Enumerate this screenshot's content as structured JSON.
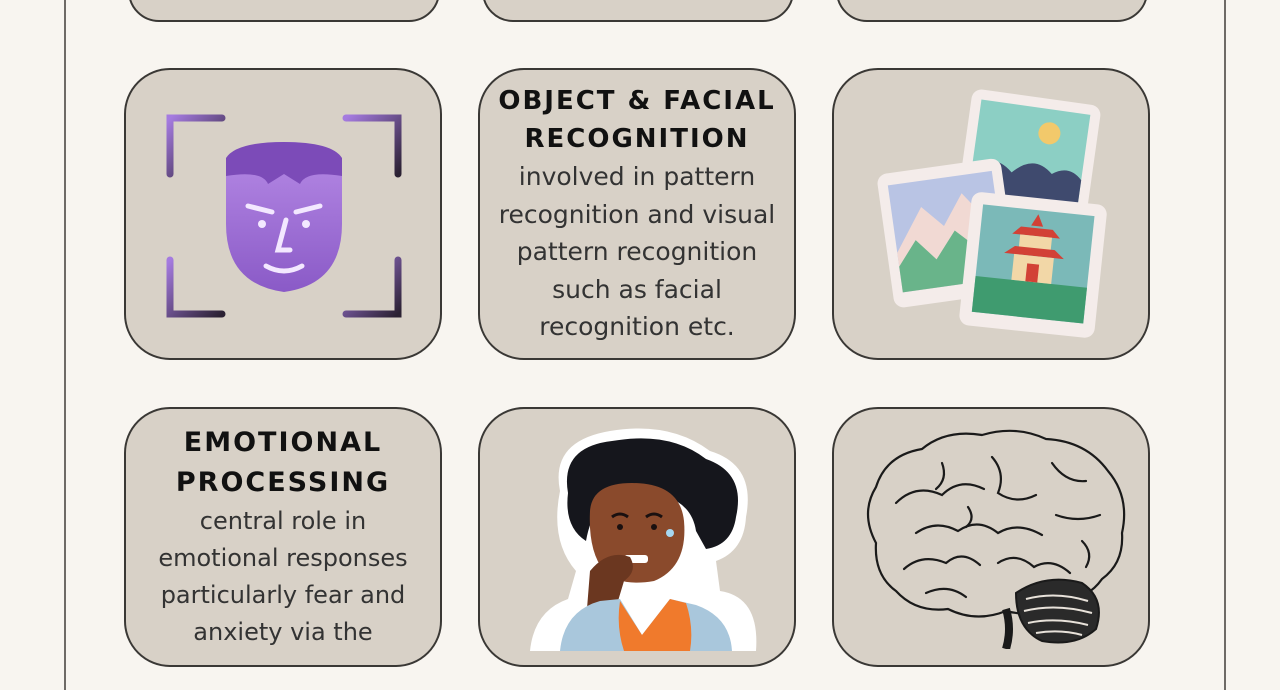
{
  "cards": {
    "object_facial": {
      "heading_line1": "OBJECT & FACIAL",
      "heading_line2": "RECOGNITION",
      "body_lines": [
        "involved in pattern",
        "recognition and visual",
        "pattern recognition",
        "such as facial",
        "recognition etc."
      ]
    },
    "emotional": {
      "heading_line1": "EMOTIONAL",
      "heading_line2": "PROCESSING",
      "body_lines": [
        "central role in",
        "emotional responses",
        "particularly fear and",
        "anxiety via the"
      ]
    }
  },
  "icons": {
    "face_scan": "face-scan-icon",
    "photos": "photos-icon",
    "anxious_woman": "anxious-woman-illustration",
    "brain": "brain-icon"
  },
  "colors": {
    "card_bg": "#d8d1c7",
    "page_bg": "#f8f5f0",
    "accent_purple": "#9c6bd6"
  }
}
